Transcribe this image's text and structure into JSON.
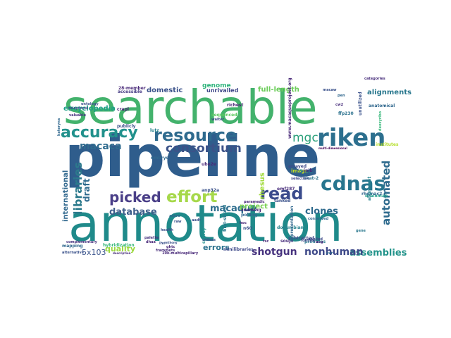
{
  "words": [
    {
      "text": "pipeline",
      "color": "#2f5d8c"
    },
    {
      "text": "annotation",
      "color": "#1f8a8a"
    },
    {
      "text": "searchable",
      "color": "#43b26c"
    },
    {
      "text": "riken",
      "color": "#2c6f8e"
    },
    {
      "text": "cdnas",
      "color": "#27758e"
    },
    {
      "text": "resource",
      "color": "#2f6b8e"
    },
    {
      "text": "accuracy",
      "color": "#21918c"
    },
    {
      "text": "effort",
      "color": "#a6d84a"
    },
    {
      "text": "read",
      "color": "#3a4b8c"
    },
    {
      "text": "picked",
      "color": "#4a3f88"
    },
    {
      "text": "macaca",
      "color": "#2f6b8e"
    },
    {
      "text": "consortium",
      "color": "#3b5288"
    },
    {
      "text": "mgc",
      "color": "#2aa07a"
    },
    {
      "text": "database",
      "color": "#3f5f8c"
    },
    {
      "text": "automated",
      "color": "#2f6b8e"
    },
    {
      "text": "libraries",
      "color": "#2c7a8c"
    },
    {
      "text": "clones",
      "color": "#2f6b8e"
    },
    {
      "text": "assemblies",
      "color": "#22938a"
    },
    {
      "text": "shotgun",
      "color": "#46327e"
    },
    {
      "text": "nonhuman",
      "color": "#3e4989"
    },
    {
      "text": "errors",
      "color": "#2c728e"
    },
    {
      "text": "quality",
      "color": "#9bd93c"
    },
    {
      "text": "5x103",
      "color": "#3a548c"
    },
    {
      "text": "encyclopedia",
      "color": "#1fa088"
    },
    {
      "text": "domestic",
      "color": "#3b528b"
    },
    {
      "text": "alignments",
      "color": "#2a788e"
    },
    {
      "text": "full-length",
      "color": "#6ccd5a"
    },
    {
      "text": "genome",
      "color": "#2fb47c"
    },
    {
      "text": "rhesus",
      "color": "#a0da39"
    },
    {
      "text": "macaque",
      "color": "#2e6e8e"
    },
    {
      "text": "project",
      "color": "#7ad151"
    },
    {
      "text": "draft",
      "color": "#2f6b8e"
    },
    {
      "text": "international",
      "color": "#31688e"
    },
    {
      "text": "unrivalled",
      "color": "#3f4788"
    },
    {
      "text": "28-member",
      "color": "#482878"
    },
    {
      "text": "accessible",
      "color": "#443a83"
    },
    {
      "text": "publicly",
      "color": "#3b528b"
    },
    {
      "text": "hybridization",
      "color": "#35b779"
    },
    {
      "text": "sequenced",
      "color": "#5ec962"
    },
    {
      "text": "richest",
      "color": "#482475"
    },
    {
      "text": "image",
      "color": "#c2df23"
    },
    {
      "text": "5'-est",
      "color": "#26828e"
    },
    {
      "text": "survey",
      "color": "#21918c"
    },
    {
      "text": "n60",
      "color": "#3b528b"
    },
    {
      "text": "zooming",
      "color": "#482878"
    },
    {
      "text": "polling",
      "color": "#31688e"
    },
    {
      "text": "subtracted",
      "color": "#3e4a89"
    },
    {
      "text": "primates",
      "color": "#2a788e"
    },
    {
      "text": "brainmap",
      "color": "#1f9e89"
    },
    {
      "text": "rhemac2",
      "color": "#31688e"
    },
    {
      "text": "dodumbian",
      "color": "#26828e"
    },
    {
      "text": "ube2e",
      "color": "#482878"
    },
    {
      "text": "anp32a",
      "color": "#3b528b"
    },
    {
      "text": "skat-2",
      "color": "#2c728e"
    },
    {
      "text": "embrys",
      "color": "#31688e"
    },
    {
      "text": "arrayed",
      "color": "#3e4989"
    },
    {
      "text": "inib",
      "color": "#482878"
    },
    {
      "text": "multi-dimensional",
      "color": "#440154"
    },
    {
      "text": "mapping",
      "color": "#31688e"
    },
    {
      "text": "alternative",
      "color": "#3b528b"
    },
    {
      "text": "complementary",
      "color": "#46327e"
    },
    {
      "text": "frammets",
      "color": "#472d7b"
    },
    {
      "text": "minilibraries",
      "color": "#3e4989"
    },
    {
      "text": "anatomical",
      "color": "#31688e"
    },
    {
      "text": "alignment",
      "color": "#26828e"
    },
    {
      "text": "categories",
      "color": "#472d7b"
    },
    {
      "text": "unutilized",
      "color": "#3b528b"
    },
    {
      "text": "ffp230",
      "color": "#2c728e"
    },
    {
      "text": "institutes",
      "color": "#b5de2b"
    },
    {
      "text": "www.macaqueproject.org",
      "color": "#482878"
    },
    {
      "text": "valuable",
      "color": "#46327e"
    },
    {
      "text": "telephone",
      "color": "#3b528b"
    },
    {
      "text": "crapl",
      "color": "#482475"
    },
    {
      "text": "walter",
      "color": "#3e4989"
    },
    {
      "text": "emf287",
      "color": "#472d7b"
    },
    {
      "text": "zebra",
      "color": "#31688e"
    },
    {
      "text": "raw",
      "color": "#3b528b"
    },
    {
      "text": "hoc",
      "color": "#482878"
    },
    {
      "text": "lutz",
      "color": "#26828e"
    },
    {
      "text": "aadt",
      "color": "#3b528b"
    },
    {
      "text": "kateryna",
      "color": "#31688e"
    },
    {
      "text": "deoxyribo",
      "color": "#35b779"
    },
    {
      "text": "ang",
      "color": "#482878"
    },
    {
      "text": "health",
      "color": "#3b528b"
    },
    {
      "text": "gene",
      "color": "#2a788e"
    },
    {
      "text": "first-strand",
      "color": "#2a788e"
    },
    {
      "text": "soujn",
      "color": "#472d7b"
    },
    {
      "text": "fomnos",
      "color": "#3e4989"
    },
    {
      "text": "conserved",
      "color": "#31688e"
    },
    {
      "text": "tanked",
      "color": "#3b528b"
    },
    {
      "text": "10k-multicapillary",
      "color": "#482878"
    },
    {
      "text": "description",
      "color": "#472d7b"
    },
    {
      "text": "palette",
      "color": "#46327e"
    },
    {
      "text": "crdnas",
      "color": "#3b528b"
    },
    {
      "text": "selection",
      "color": "#3e4989"
    },
    {
      "text": "representation",
      "color": "#31688e"
    },
    {
      "text": "paramedic",
      "color": "#482878"
    },
    {
      "text": "macaw",
      "color": "#3b528b"
    },
    {
      "text": "applied",
      "color": "#3e4989"
    },
    {
      "text": "rsc",
      "color": "#482878"
    },
    {
      "text": "ovr",
      "color": "#31688e"
    },
    {
      "text": "lhc",
      "color": "#3b528b"
    },
    {
      "text": "dhaa",
      "color": "#482878"
    },
    {
      "text": "anthony",
      "color": "#3b528b"
    },
    {
      "text": "ghtc",
      "color": "#482878"
    },
    {
      "text": "ontology",
      "color": "#3b528b"
    },
    {
      "text": "cw2",
      "color": "#472d7b"
    },
    {
      "text": "pen",
      "color": "#31688e"
    }
  ]
}
